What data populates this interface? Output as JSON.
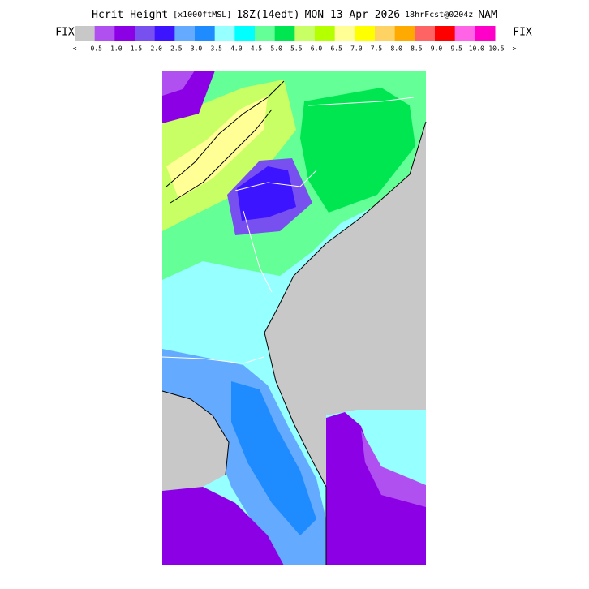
{
  "header": {
    "title_parts": [
      "Hcrit Height",
      "[x1000ftMSL]",
      "18Z(14edt)",
      "MON 13 Apr 2026",
      "18hrFcst@0204z",
      "NAM"
    ]
  },
  "legend": {
    "left_button": "FIX",
    "right_button": "FIX",
    "colors": [
      "#c8c8c8",
      "#b050f0",
      "#8c00e6",
      "#7850f0",
      "#3c14ff",
      "#64aaff",
      "#1e8cff",
      "#96ffff",
      "#00ffff",
      "#64ff96",
      "#00e650",
      "#c8ff64",
      "#b4ff00",
      "#ffff96",
      "#ffff00",
      "#ffd264",
      "#ffaa00",
      "#ff6464",
      "#ff0000",
      "#ff64e6",
      "#ff00c8"
    ],
    "labels": [
      "<",
      "0.5",
      "1.0",
      "1.5",
      "2.0",
      "2.5",
      "3.0",
      "3.5",
      "4.0",
      "4.5",
      "5.0",
      "5.5",
      "6.0",
      "6.5",
      "7.0",
      "7.5",
      "8.0",
      "8.5",
      "9.0",
      "9.5",
      "10.0",
      "10.5",
      ">"
    ]
  }
}
